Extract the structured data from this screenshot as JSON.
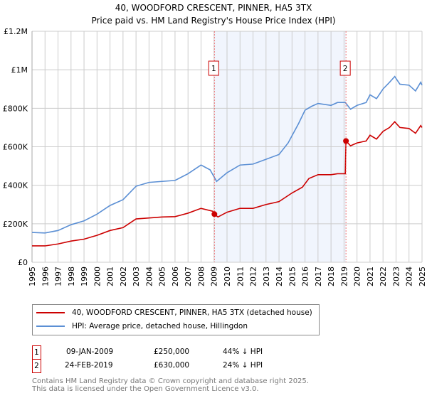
{
  "chart_data": {
    "type": "line",
    "title": "40, WOODFORD CRESCENT, PINNER, HA5 3TX",
    "subtitle": "Price paid vs. HM Land Registry's House Price Index (HPI)",
    "xlim": [
      1995,
      2025
    ],
    "ylim": [
      0,
      1200000
    ],
    "y_ticks": [
      {
        "v": 0,
        "label": "£0"
      },
      {
        "v": 200000,
        "label": "£200K"
      },
      {
        "v": 400000,
        "label": "£400K"
      },
      {
        "v": 600000,
        "label": "£600K"
      },
      {
        "v": 800000,
        "label": "£800K"
      },
      {
        "v": 1000000,
        "label": "£1M"
      },
      {
        "v": 1200000,
        "label": "£1.2M"
      }
    ],
    "x_ticks": [
      "1995",
      "1996",
      "1997",
      "1998",
      "1999",
      "2000",
      "2001",
      "2002",
      "2003",
      "2004",
      "2005",
      "2006",
      "2007",
      "2008",
      "2009",
      "2010",
      "2011",
      "2012",
      "2013",
      "2014",
      "2015",
      "2016",
      "2017",
      "2018",
      "2019",
      "2020",
      "2021",
      "2022",
      "2023",
      "2024",
      "2025"
    ],
    "grid": true,
    "shaded_range": [
      2009.03,
      2019.15
    ],
    "series": [
      {
        "name": "40, WOODFORD CRESCENT, PINNER, HA5 3TX (detached house)",
        "color": "#cc0000",
        "x": [
          1995,
          1996,
          1997,
          1998,
          1999,
          2000,
          2001,
          2002,
          2003,
          2004,
          2005,
          2006,
          2007,
          2008,
          2008.9,
          2009.03,
          2009.3,
          2010,
          2011,
          2012,
          2013,
          2014,
          2015,
          2015.8,
          2016.3,
          2017,
          2018,
          2018.5,
          2019.1,
          2019.15,
          2019.5,
          2020,
          2020.7,
          2021,
          2021.5,
          2022,
          2022.5,
          2022.9,
          2023.3,
          2024,
          2024.5,
          2024.9,
          2025
        ],
        "y": [
          85000,
          85000,
          95000,
          110000,
          120000,
          140000,
          165000,
          180000,
          225000,
          230000,
          235000,
          237000,
          255000,
          280000,
          265000,
          250000,
          235000,
          260000,
          280000,
          280000,
          300000,
          315000,
          360000,
          390000,
          435000,
          455000,
          455000,
          460000,
          460000,
          630000,
          605000,
          620000,
          630000,
          660000,
          640000,
          680000,
          700000,
          730000,
          700000,
          695000,
          670000,
          710000,
          700000
        ]
      },
      {
        "name": "HPI: Average price, detached house, Hillingdon",
        "color": "#5b8fd4",
        "x": [
          1995,
          1996,
          1997,
          1998,
          1999,
          2000,
          2001,
          2002,
          2003,
          2004,
          2005,
          2006,
          2007,
          2008,
          2008.7,
          2009.2,
          2010,
          2011,
          2012,
          2013,
          2014,
          2014.7,
          2015.5,
          2016,
          2016.5,
          2017,
          2018,
          2018.5,
          2019.1,
          2019.5,
          2020,
          2020.7,
          2021,
          2021.5,
          2022,
          2022.5,
          2022.9,
          2023.3,
          2024,
          2024.5,
          2024.9,
          2025
        ],
        "y": [
          155000,
          152000,
          165000,
          195000,
          215000,
          250000,
          295000,
          325000,
          395000,
          415000,
          420000,
          425000,
          460000,
          505000,
          480000,
          420000,
          465000,
          505000,
          510000,
          535000,
          560000,
          620000,
          720000,
          790000,
          810000,
          825000,
          815000,
          830000,
          830000,
          795000,
          815000,
          830000,
          870000,
          850000,
          900000,
          935000,
          965000,
          925000,
          920000,
          890000,
          935000,
          920000
        ]
      }
    ],
    "sales": [
      {
        "id": "1",
        "x": 2009.03,
        "y": 250000,
        "date": "09-JAN-2009",
        "price": "£250,000",
        "hpi": "44% ↓ HPI"
      },
      {
        "id": "2",
        "x": 2019.15,
        "y": 630000,
        "date": "24-FEB-2019",
        "price": "£630,000",
        "hpi": "24% ↓ HPI"
      }
    ],
    "legend_placement": "below"
  },
  "footer": {
    "line1": "Contains HM Land Registry data © Crown copyright and database right 2025.",
    "line2": "This data is licensed under the Open Government Licence v3.0."
  }
}
